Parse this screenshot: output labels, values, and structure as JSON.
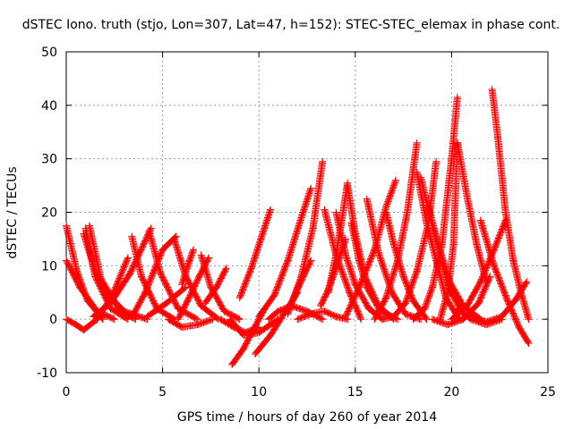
{
  "chart_data": {
    "type": "scatter",
    "title": "dSTEC Iono. truth (stjo, Lon=307, Lat=47, h=152): STEC-STEC_elemax in phase cont.",
    "xlabel": "GPS time / hours of day 260 of year 2014",
    "ylabel": "dSTEC  / TECUs",
    "xlim": [
      0,
      25
    ],
    "ylim": [
      -10,
      50
    ],
    "x_ticks": [
      "0",
      "5",
      "10",
      "15",
      "20",
      "25"
    ],
    "y_ticks": [
      "-10",
      "0",
      "10",
      "20",
      "30",
      "40",
      "50"
    ],
    "grid": true,
    "marker": "+",
    "color": "#ff0000",
    "arcs": [
      {
        "segments": [
          [
            0.0,
            17.5
          ],
          [
            0.55,
            9.0
          ],
          [
            1.1,
            3.5
          ],
          [
            1.9,
            0.0
          ]
        ]
      },
      {
        "segments": [
          [
            0.0,
            0.0
          ],
          [
            0.5,
            -1.0
          ],
          [
            0.9,
            -2.0
          ],
          [
            1.6,
            0.0
          ],
          [
            2.4,
            4.5
          ],
          [
            3.2,
            11.5
          ]
        ]
      },
      {
        "segments": [
          [
            0.0,
            11.0
          ],
          [
            0.7,
            6.0
          ],
          [
            1.6,
            1.5
          ],
          [
            2.5,
            0.0
          ]
        ]
      },
      {
        "segments": [
          [
            1.0,
            17.0
          ],
          [
            1.5,
            8.0
          ],
          [
            2.3,
            2.0
          ],
          [
            3.2,
            0.0
          ]
        ]
      },
      {
        "segments": [
          [
            1.2,
            17.5
          ],
          [
            1.8,
            7.5
          ],
          [
            2.8,
            1.5
          ],
          [
            3.6,
            0.0
          ]
        ]
      },
      {
        "segments": [
          [
            0.9,
            16.0
          ],
          [
            1.5,
            9.0
          ],
          [
            2.2,
            4.5
          ],
          [
            3.0,
            1.5
          ],
          [
            4.2,
            0.0
          ]
        ]
      },
      {
        "segments": [
          [
            1.4,
            0.5
          ],
          [
            2.3,
            3.0
          ],
          [
            3.3,
            8.5
          ],
          [
            4.4,
            17.0
          ]
        ]
      },
      {
        "segments": [
          [
            3.4,
            15.5
          ],
          [
            3.9,
            8.0
          ],
          [
            4.7,
            2.0
          ],
          [
            5.6,
            0.0
          ]
        ]
      },
      {
        "segments": [
          [
            3.0,
            0.5
          ],
          [
            3.5,
            1.0
          ],
          [
            4.1,
            5.0
          ],
          [
            5.0,
            13.0
          ],
          [
            5.7,
            15.5
          ]
        ]
      },
      {
        "segments": [
          [
            4.3,
            16.5
          ],
          [
            4.9,
            8.5
          ],
          [
            5.8,
            2.0
          ],
          [
            6.8,
            0.0
          ]
        ]
      },
      {
        "segments": [
          [
            4.2,
            0.5
          ],
          [
            5.2,
            3.0
          ],
          [
            6.2,
            6.0
          ]
        ]
      },
      {
        "segments": [
          [
            5.6,
            15.0
          ],
          [
            6.2,
            8.0
          ],
          [
            7.0,
            2.5
          ],
          [
            7.9,
            0.0
          ]
        ]
      },
      {
        "segments": [
          [
            5.3,
            0.0
          ],
          [
            6.0,
            -1.5
          ],
          [
            6.8,
            -1.0
          ],
          [
            7.6,
            0.0
          ]
        ]
      },
      {
        "segments": [
          [
            5.8,
            0.0
          ],
          [
            6.3,
            3.5
          ],
          [
            6.9,
            8.0
          ],
          [
            7.4,
            11.5
          ]
        ]
      },
      {
        "segments": [
          [
            6.0,
            6.5
          ],
          [
            6.4,
            11.0
          ],
          [
            6.6,
            13.0
          ]
        ]
      },
      {
        "segments": [
          [
            7.0,
            12.0
          ],
          [
            7.5,
            6.0
          ],
          [
            8.2,
            1.5
          ],
          [
            9.0,
            0.0
          ]
        ]
      },
      {
        "segments": [
          [
            8.0,
            0.0
          ],
          [
            8.7,
            -1.5
          ],
          [
            9.3,
            -2.5
          ],
          [
            10.0,
            -1.5
          ]
        ]
      },
      {
        "segments": [
          [
            7.2,
            3.0
          ],
          [
            7.8,
            6.0
          ],
          [
            8.3,
            9.5
          ]
        ]
      },
      {
        "segments": [
          [
            8.5,
            0.0
          ],
          [
            9.2,
            -3.0
          ],
          [
            10.0,
            -2.5
          ],
          [
            11.0,
            0.0
          ]
        ]
      },
      {
        "segments": [
          [
            8.6,
            -8.5
          ],
          [
            9.2,
            -5.5
          ],
          [
            9.7,
            -2.0
          ],
          [
            10.3,
            2.0
          ]
        ]
      },
      {
        "segments": [
          [
            9.8,
            -6.5
          ],
          [
            10.6,
            -3.0
          ],
          [
            11.3,
            1.0
          ],
          [
            12.0,
            5.0
          ]
        ]
      },
      {
        "segments": [
          [
            9.0,
            4.0
          ],
          [
            9.6,
            9.5
          ],
          [
            10.1,
            15.0
          ],
          [
            10.6,
            20.5
          ]
        ]
      },
      {
        "segments": [
          [
            10.0,
            0.5
          ],
          [
            10.8,
            4.5
          ],
          [
            11.5,
            11.0
          ],
          [
            12.2,
            19.0
          ],
          [
            12.7,
            24.5
          ]
        ]
      },
      {
        "segments": [
          [
            11.5,
            1.0
          ],
          [
            12.2,
            8.0
          ],
          [
            12.8,
            17.0
          ],
          [
            13.3,
            29.5
          ]
        ]
      },
      {
        "segments": [
          [
            10.5,
            0.0
          ],
          [
            11.0,
            1.5
          ],
          [
            11.7,
            2.5
          ],
          [
            12.5,
            1.5
          ],
          [
            13.3,
            0.0
          ]
        ]
      },
      {
        "segments": [
          [
            11.8,
            4.0
          ],
          [
            12.3,
            8.0
          ],
          [
            12.7,
            11.0
          ]
        ]
      },
      {
        "segments": [
          [
            12.0,
            0.0
          ],
          [
            12.7,
            1.0
          ],
          [
            13.4,
            1.5
          ],
          [
            14.0,
            0.5
          ],
          [
            14.6,
            0.0
          ]
        ]
      },
      {
        "segments": [
          [
            13.2,
            2.5
          ],
          [
            13.6,
            5.5
          ],
          [
            14.0,
            9.5
          ],
          [
            14.5,
            15.0
          ]
        ]
      },
      {
        "segments": [
          [
            13.4,
            20.5
          ],
          [
            14.0,
            12.0
          ],
          [
            14.7,
            5.0
          ],
          [
            15.3,
            0.0
          ]
        ]
      },
      {
        "segments": [
          [
            13.6,
            5.0
          ],
          [
            14.0,
            12.0
          ],
          [
            14.3,
            18.5
          ],
          [
            14.6,
            25.5
          ]
        ]
      },
      {
        "segments": [
          [
            14.0,
            20.0
          ],
          [
            14.5,
            12.0
          ],
          [
            15.0,
            6.5
          ],
          [
            15.7,
            2.0
          ],
          [
            16.4,
            0.0
          ]
        ]
      },
      {
        "segments": [
          [
            14.6,
            25.0
          ],
          [
            15.0,
            16.0
          ],
          [
            15.5,
            8.0
          ],
          [
            16.2,
            2.5
          ],
          [
            17.0,
            0.0
          ]
        ]
      },
      {
        "segments": [
          [
            14.8,
            18.0
          ],
          [
            15.2,
            11.0
          ],
          [
            15.6,
            6.0
          ],
          [
            16.3,
            1.5
          ],
          [
            17.2,
            0.0
          ]
        ]
      },
      {
        "segments": [
          [
            15.6,
            22.5
          ],
          [
            16.2,
            12.5
          ],
          [
            16.9,
            5.0
          ],
          [
            17.6,
            1.0
          ],
          [
            18.4,
            0.0
          ]
        ]
      },
      {
        "segments": [
          [
            14.5,
            0.5
          ],
          [
            15.2,
            6.0
          ],
          [
            16.0,
            13.0
          ],
          [
            16.6,
            21.0
          ],
          [
            17.1,
            26.0
          ]
        ]
      },
      {
        "segments": [
          [
            16.0,
            0.0
          ],
          [
            16.6,
            4.0
          ],
          [
            17.2,
            11.0
          ],
          [
            17.7,
            20.0
          ],
          [
            18.2,
            33.0
          ]
        ]
      },
      {
        "segments": [
          [
            16.6,
            20.0
          ],
          [
            17.0,
            14.0
          ],
          [
            17.5,
            8.0
          ],
          [
            18.0,
            3.5
          ],
          [
            18.7,
            0.0
          ]
        ]
      },
      {
        "segments": [
          [
            16.4,
            0.0
          ],
          [
            17.0,
            0.5
          ],
          [
            17.6,
            3.0
          ],
          [
            18.2,
            9.0
          ],
          [
            18.8,
            18.0
          ],
          [
            19.2,
            29.5
          ]
        ]
      },
      {
        "segments": [
          [
            18.2,
            27.5
          ],
          [
            18.7,
            18.0
          ],
          [
            19.2,
            11.0
          ],
          [
            19.7,
            4.0
          ],
          [
            20.4,
            0.0
          ]
        ]
      },
      {
        "segments": [
          [
            18.4,
            26.5
          ],
          [
            18.9,
            19.0
          ],
          [
            19.4,
            12.0
          ],
          [
            19.9,
            5.5
          ],
          [
            20.6,
            1.0
          ]
        ]
      },
      {
        "segments": [
          [
            18.0,
            0.0
          ],
          [
            18.6,
            2.0
          ],
          [
            19.0,
            6.0
          ],
          [
            19.5,
            14.0
          ],
          [
            20.0,
            30.0
          ],
          [
            20.3,
            41.5
          ]
        ]
      },
      {
        "segments": [
          [
            19.4,
            0.0
          ],
          [
            19.8,
            5.0
          ],
          [
            20.1,
            14.0
          ],
          [
            20.3,
            33.0
          ],
          [
            20.8,
            23.0
          ],
          [
            21.3,
            14.0
          ],
          [
            21.8,
            7.0
          ]
        ]
      },
      {
        "segments": [
          [
            18.8,
            21.0
          ],
          [
            19.3,
            14.0
          ],
          [
            19.9,
            7.0
          ],
          [
            20.6,
            2.5
          ],
          [
            21.5,
            0.0
          ]
        ]
      },
      {
        "segments": [
          [
            19.0,
            0.0
          ],
          [
            19.8,
            -1.0
          ],
          [
            20.6,
            0.0
          ],
          [
            21.4,
            3.0
          ],
          [
            22.0,
            8.0
          ]
        ]
      },
      {
        "segments": [
          [
            20.0,
            0.0
          ],
          [
            20.8,
            2.5
          ],
          [
            21.5,
            7.0
          ],
          [
            22.2,
            13.0
          ],
          [
            22.8,
            18.5
          ]
        ]
      },
      {
        "segments": [
          [
            22.1,
            43.0
          ],
          [
            22.4,
            34.0
          ],
          [
            22.8,
            20.0
          ],
          [
            23.2,
            11.0
          ],
          [
            23.6,
            5.0
          ],
          [
            24.0,
            0.0
          ]
        ]
      },
      {
        "segments": [
          [
            21.0,
            0.5
          ],
          [
            21.8,
            -0.5
          ],
          [
            22.6,
            0.5
          ],
          [
            23.3,
            3.5
          ],
          [
            23.9,
            7.0
          ]
        ]
      },
      {
        "segments": [
          [
            21.5,
            18.5
          ],
          [
            22.2,
            10.0
          ],
          [
            22.9,
            3.5
          ],
          [
            23.5,
            -1.5
          ],
          [
            24.0,
            -4.5
          ]
        ]
      },
      {
        "segments": [
          [
            20.3,
            2.0
          ],
          [
            21.0,
            0.0
          ],
          [
            21.8,
            -1.0
          ],
          [
            22.6,
            0.0
          ]
        ]
      }
    ]
  }
}
